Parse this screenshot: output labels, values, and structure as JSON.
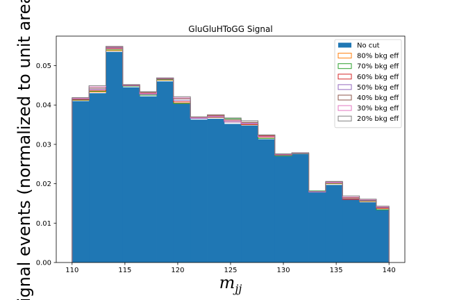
{
  "chart_data": {
    "type": "histogram",
    "title": "GluGluHToGG Signal",
    "xlabel": "m",
    "xlabel_sub": "jj",
    "ylabel": "Signal events (normalized to unit area)",
    "xlim": [
      108.5,
      141.5
    ],
    "ylim": [
      0,
      0.0575
    ],
    "xticks": [
      110,
      115,
      120,
      125,
      130,
      135,
      140
    ],
    "yticks": [
      0.0,
      0.01,
      0.02,
      0.03,
      0.04,
      0.05
    ],
    "ytick_labels": [
      "0.00",
      "0.01",
      "0.02",
      "0.03",
      "0.04",
      "0.05"
    ],
    "bin_edges": [
      110,
      111.6,
      113.2,
      114.8,
      116.4,
      118.0,
      119.6,
      121.2,
      122.8,
      124.4,
      126.0,
      127.6,
      129.2,
      130.8,
      132.4,
      134.0,
      135.6,
      137.2,
      138.8,
      140
    ],
    "legend_position": "upper right",
    "grid": false,
    "series": [
      {
        "name": "No cut",
        "style": "filled",
        "color": "#1f77b4",
        "values": [
          0.041,
          0.043,
          0.0535,
          0.0445,
          0.0422,
          0.046,
          0.0403,
          0.0363,
          0.0365,
          0.0352,
          0.0348,
          0.0313,
          0.027,
          0.0275,
          0.0178,
          0.0197,
          0.016,
          0.0153,
          0.0135
        ]
      },
      {
        "name": "80% bkg eff",
        "style": "step",
        "color": "#ff7f0e",
        "values": [
          0.0412,
          0.0433,
          0.0538,
          0.045,
          0.0425,
          0.0463,
          0.0405,
          0.0369,
          0.0368,
          0.036,
          0.035,
          0.0318,
          0.0272,
          0.0276,
          0.018,
          0.02,
          0.0163,
          0.0155,
          0.0137
        ]
      },
      {
        "name": "70% bkg eff",
        "style": "step",
        "color": "#2ca02c",
        "values": [
          0.0413,
          0.0435,
          0.054,
          0.0448,
          0.0425,
          0.0464,
          0.0404,
          0.0368,
          0.0369,
          0.0365,
          0.0355,
          0.0315,
          0.0271,
          0.0276,
          0.0182,
          0.0201,
          0.0161,
          0.0156,
          0.0134
        ]
      },
      {
        "name": "60% bkg eff",
        "style": "step",
        "color": "#d62728",
        "values": [
          0.0414,
          0.0437,
          0.0543,
          0.0449,
          0.043,
          0.0466,
          0.0408,
          0.0366,
          0.0372,
          0.0357,
          0.0351,
          0.0321,
          0.0273,
          0.0277,
          0.0179,
          0.0203,
          0.016,
          0.0157,
          0.0138
        ]
      },
      {
        "name": "50% bkg eff",
        "style": "step",
        "color": "#9467bd",
        "values": [
          0.0415,
          0.044,
          0.0545,
          0.0449,
          0.0427,
          0.0466,
          0.0412,
          0.0366,
          0.0369,
          0.0357,
          0.0352,
          0.0319,
          0.0273,
          0.0277,
          0.0179,
          0.0202,
          0.0162,
          0.0157,
          0.0139
        ]
      },
      {
        "name": "40% bkg eff",
        "style": "step",
        "color": "#8c564b",
        "values": [
          0.0416,
          0.0443,
          0.0547,
          0.045,
          0.0432,
          0.0467,
          0.0416,
          0.0368,
          0.0375,
          0.0362,
          0.0356,
          0.0323,
          0.0274,
          0.0278,
          0.018,
          0.0205,
          0.0165,
          0.0158,
          0.014
        ]
      },
      {
        "name": "30% bkg eff",
        "style": "step",
        "color": "#e377c2",
        "values": [
          0.0417,
          0.0446,
          0.0548,
          0.0451,
          0.0429,
          0.0468,
          0.0418,
          0.0368,
          0.0371,
          0.036,
          0.0354,
          0.032,
          0.0275,
          0.0278,
          0.018,
          0.0203,
          0.0166,
          0.0159,
          0.0141
        ]
      },
      {
        "name": "20% bkg eff",
        "style": "step",
        "color": "#7f7f7f",
        "values": [
          0.0419,
          0.0449,
          0.0549,
          0.0452,
          0.0434,
          0.0469,
          0.0421,
          0.037,
          0.0374,
          0.0367,
          0.036,
          0.0324,
          0.0276,
          0.0279,
          0.0181,
          0.0206,
          0.0169,
          0.0161,
          0.0143
        ]
      }
    ]
  }
}
